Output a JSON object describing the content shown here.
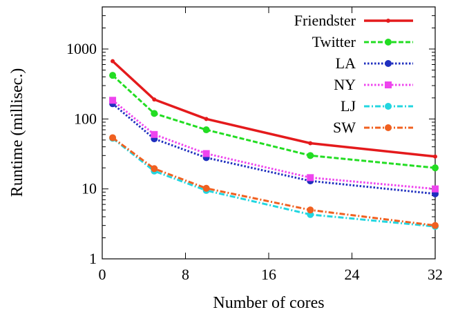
{
  "chart_data": {
    "type": "line",
    "xlabel": "Number of cores",
    "ylabel": "Runtime (millisec.)",
    "x": [
      1,
      5,
      10,
      20,
      32
    ],
    "xlim": [
      0,
      32
    ],
    "ylim": [
      1,
      4000
    ],
    "yscale": "log",
    "xticks": [
      0,
      8,
      16,
      24,
      32
    ],
    "yticks": [
      1,
      10,
      100,
      1000
    ],
    "grid": false,
    "legend_position": "top-right",
    "series": [
      {
        "name": "Friendster",
        "color": "#e41a1c",
        "style": "solid",
        "marker": "dot",
        "values": [
          670,
          190,
          100,
          45,
          29
        ]
      },
      {
        "name": "Twitter",
        "color": "#22dd22",
        "style": "dashed",
        "marker": "circle",
        "values": [
          420,
          120,
          70,
          30,
          20
        ]
      },
      {
        "name": "LA",
        "color": "#1f2fbf",
        "style": "dotted",
        "marker": "circle",
        "values": [
          165,
          52,
          28,
          13,
          8.5
        ]
      },
      {
        "name": "NY",
        "color": "#ee44ee",
        "style": "dotted",
        "marker": "square",
        "values": [
          185,
          60,
          32,
          14.5,
          10
        ]
      },
      {
        "name": "LJ",
        "color": "#22d6e0",
        "style": "dashdot",
        "marker": "circle",
        "values": [
          53,
          18,
          9.5,
          4.3,
          2.9
        ]
      },
      {
        "name": "SW",
        "color": "#f06020",
        "style": "dashdot",
        "marker": "circle",
        "values": [
          54,
          19.5,
          10.2,
          5,
          3
        ]
      }
    ]
  }
}
